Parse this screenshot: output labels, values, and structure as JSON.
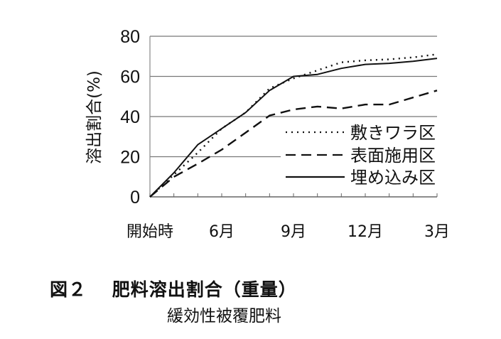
{
  "chart_data": {
    "type": "line",
    "title": "",
    "xlabel": "",
    "ylabel": "溶出割合(%)",
    "ylim": [
      0,
      80
    ],
    "yticks": [
      "0",
      "20",
      "40",
      "60",
      "80"
    ],
    "x": [
      0,
      1,
      2,
      3,
      4,
      5,
      6,
      7,
      8,
      9,
      10,
      11,
      12
    ],
    "xtick_labels": [
      {
        "x": 0,
        "label": "開始時"
      },
      {
        "x": 3,
        "label": "6月"
      },
      {
        "x": 6,
        "label": "9月"
      },
      {
        "x": 9,
        "label": "12月"
      },
      {
        "x": 12,
        "label": "3月"
      }
    ],
    "grid": true,
    "legend_position": "right",
    "series": [
      {
        "name": "敷きワラ区",
        "style": "dotted",
        "values": [
          0,
          11,
          22,
          34,
          42,
          54,
          59,
          63,
          67,
          68,
          68.5,
          69.5,
          71
        ]
      },
      {
        "name": "表面施用区",
        "style": "dashed",
        "values": [
          0,
          10,
          16.5,
          23.5,
          32,
          40.5,
          43.5,
          45,
          44,
          46,
          46,
          49.5,
          53
        ]
      },
      {
        "name": "埋め込み区",
        "style": "solid",
        "values": [
          0,
          12,
          26,
          34,
          42,
          53,
          60,
          61,
          64,
          66,
          66.5,
          67.5,
          69
        ]
      }
    ]
  },
  "caption": {
    "figure_title": "図２　 肥料溶出割合（重量）",
    "subtitle": "緩効性被覆肥料"
  }
}
